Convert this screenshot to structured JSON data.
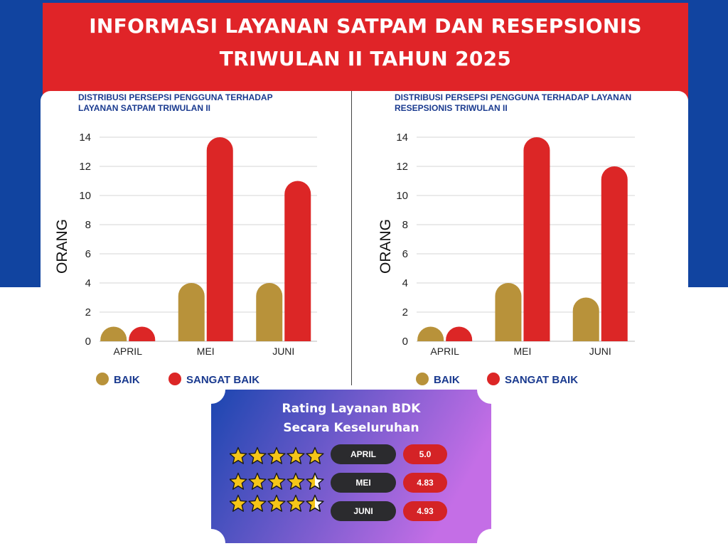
{
  "header": {
    "title_line1": "INFORMASI LAYANAN SATPAM DAN RESEPSIONIS",
    "title_line2": "TRIWULAN II TAHUN 2025"
  },
  "colors": {
    "baik": "#b8923a",
    "sangat_baik": "#dc2626",
    "navy": "#1a3a8f"
  },
  "chart_data": [
    {
      "type": "bar",
      "title": "DISTRIBUSI PERSEPSI PENGGUNA TERHADAP LAYANAN SATPAM TRIWULAN II",
      "title_lines": [
        "DISTRIBUSI PERSEPSI PENGGUNA TERHADAP",
        "LAYANAN SATPAM TRIWULAN II"
      ],
      "categories": [
        "APRIL",
        "MEI",
        "JUNI"
      ],
      "series": [
        {
          "name": "BAIK",
          "values": [
            1,
            4,
            4
          ]
        },
        {
          "name": "SANGAT BAIK",
          "values": [
            1,
            14,
            11
          ]
        }
      ],
      "ylabel": "ORANG",
      "xlabel": "",
      "ylim": [
        0,
        14
      ],
      "yticks": [
        "0",
        "2",
        "4",
        "6",
        "8",
        "10",
        "12",
        "14"
      ],
      "grid": true,
      "legend_position": "bottom-left"
    },
    {
      "type": "bar",
      "title": "DISTRIBUSI PERSEPSI PENGGUNA TERHADAP LAYANAN RESEPSIONIS TRIWULAN II",
      "title_lines": [
        "DISTRIBUSI PERSEPSI PENGGUNA TERHADAP LAYANAN",
        "RESEPSIONIS TRIWULAN II"
      ],
      "categories": [
        "APRIL",
        "MEI",
        "JUNI"
      ],
      "series": [
        {
          "name": "BAIK",
          "values": [
            1,
            4,
            3
          ]
        },
        {
          "name": "SANGAT BAIK",
          "values": [
            1,
            14,
            12
          ]
        }
      ],
      "ylabel": "ORANG",
      "xlabel": "",
      "ylim": [
        0,
        14
      ],
      "yticks": [
        "0",
        "2",
        "4",
        "6",
        "8",
        "10",
        "12",
        "14"
      ],
      "grid": true,
      "legend_position": "bottom-left"
    }
  ],
  "rating": {
    "title_line1": "Rating Layanan BDK",
    "title_line2": "Secara Keseluruhan",
    "rows": [
      {
        "month": "APRIL",
        "score": "5.0",
        "stars": 5.0
      },
      {
        "month": "MEI",
        "score": "4.83",
        "stars": 4.5
      },
      {
        "month": "JUNI",
        "score": "4.93",
        "stars": 4.5
      }
    ]
  }
}
